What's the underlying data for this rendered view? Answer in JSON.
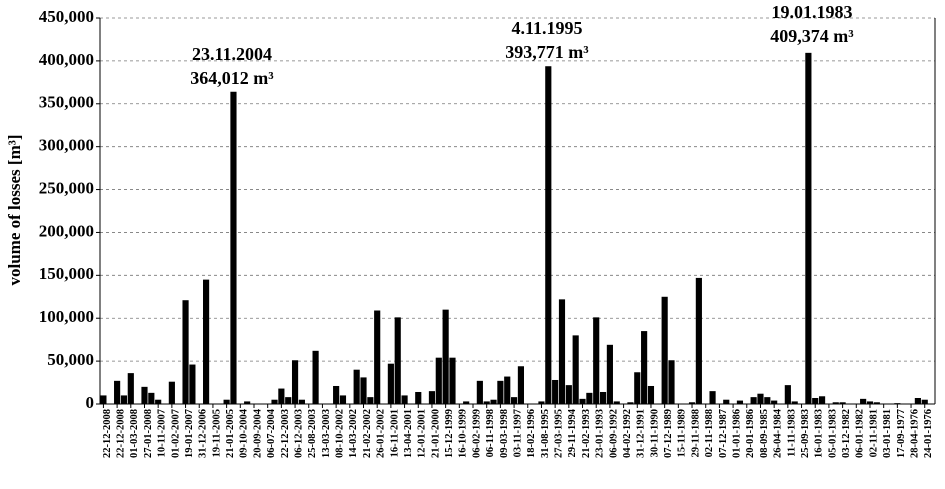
{
  "chart_data": {
    "type": "bar",
    "y_label": "volume of losses [m³]",
    "annotations": [
      [
        "23.11.2004",
        "364,012 m³"
      ],
      [
        "4.11.1995",
        "393,771 m³"
      ],
      [
        "19.01.1983",
        "409,374 m³"
      ]
    ],
    "color": "#000000",
    "grid": true,
    "ylim": [
      0,
      450000
    ],
    "yticks": [
      {
        "value": 0,
        "label": "0"
      },
      {
        "value": 50000,
        "label": "50,000"
      },
      {
        "value": 100000,
        "label": "100,000"
      },
      {
        "value": 150000,
        "label": "150,000"
      },
      {
        "value": 200000,
        "label": "200,000"
      },
      {
        "value": 250000,
        "label": "250,000"
      },
      {
        "value": 300000,
        "label": "300,000"
      },
      {
        "value": 350000,
        "label": "350,000"
      },
      {
        "value": 400000,
        "label": "400,000"
      },
      {
        "value": 450000,
        "label": "450,000"
      }
    ],
    "categories": [
      "22-12-2008",
      null,
      "22-12-2008",
      null,
      "01-03-2008",
      null,
      "27-01-2008",
      null,
      "10-11-2007",
      null,
      "01-02-2007",
      null,
      "19-01-2007",
      null,
      "31-12-2006",
      null,
      "19-11-2005",
      null,
      "21-01-2005",
      null,
      "09-10-2004",
      null,
      "20-09-2004",
      null,
      "06-07-2004",
      null,
      "22-12-2003",
      null,
      "06-12-2003",
      null,
      "25-08-2003",
      null,
      "13-03-2003",
      null,
      "08-10-2002",
      null,
      "14-03-2002",
      null,
      "21-02-2002",
      null,
      "26-01-2002",
      null,
      "16-11-2001",
      null,
      "13-04-2001",
      null,
      "12-01-2001",
      null,
      "21-01-2000",
      null,
      "15-12-1999",
      null,
      "16-10-1999",
      null,
      "06-02-1999",
      null,
      "06-11-1998",
      null,
      "09-03-1998",
      null,
      "03-11-1997",
      null,
      "18-02-1996",
      null,
      "31-08-1995",
      null,
      "27-03-1995",
      null,
      "29-11-1994",
      null,
      "21-02-1993",
      null,
      "23-01-1993",
      null,
      "06-09-1992",
      null,
      "04-02-1992",
      null,
      "31-12-1991",
      null,
      "30-11-1990",
      null,
      "07-12-1989",
      null,
      "15-11-1989",
      null,
      "29-11-1988",
      null,
      "02-11-1988",
      null,
      "07-12-1987",
      null,
      "01-01-1986",
      null,
      "20-01-1986",
      null,
      "08-09-1985",
      null,
      "26-04-1984",
      null,
      "11-11-1983",
      null,
      "25-09-1983",
      null,
      "16-01-1983",
      null,
      "05-01-1983",
      null,
      "03-12-1982",
      null,
      "06-01-1982",
      null,
      "02-11-1981",
      null,
      "03-01-1981",
      null,
      "17-09-1977",
      null,
      "28-04-1976",
      null,
      "24-01-1976",
      null
    ],
    "values": [
      10000,
      0,
      27000,
      10000,
      36000,
      0,
      20000,
      13000,
      5000,
      0,
      26000,
      0,
      121000,
      46000,
      0,
      145000,
      0,
      0,
      5000,
      364012,
      0,
      3000,
      0,
      0,
      0,
      5000,
      18000,
      8000,
      51000,
      5000,
      0,
      62000,
      0,
      0,
      21000,
      10000,
      0,
      40000,
      31000,
      8000,
      109000,
      0,
      47000,
      101000,
      10000,
      0,
      14000,
      0,
      15000,
      54000,
      110000,
      54000,
      0,
      3000,
      0,
      27000,
      3000,
      5000,
      27000,
      32000,
      8000,
      44000,
      0,
      0,
      3000,
      393771,
      28000,
      122000,
      22000,
      80000,
      6000,
      13000,
      101000,
      14000,
      69000,
      3000,
      0,
      2000,
      37000,
      85000,
      21000,
      0,
      125000,
      51000,
      0,
      0,
      2000,
      147000,
      0,
      15000,
      0,
      5000,
      0,
      4000,
      0,
      8000,
      12000,
      8000,
      4000,
      0,
      22000,
      3000,
      0,
      409374,
      7000,
      9000,
      0,
      2000,
      2000,
      0,
      0,
      6000,
      3000,
      2000,
      0,
      0,
      1000,
      0,
      0,
      7000,
      5000,
      0
    ]
  }
}
